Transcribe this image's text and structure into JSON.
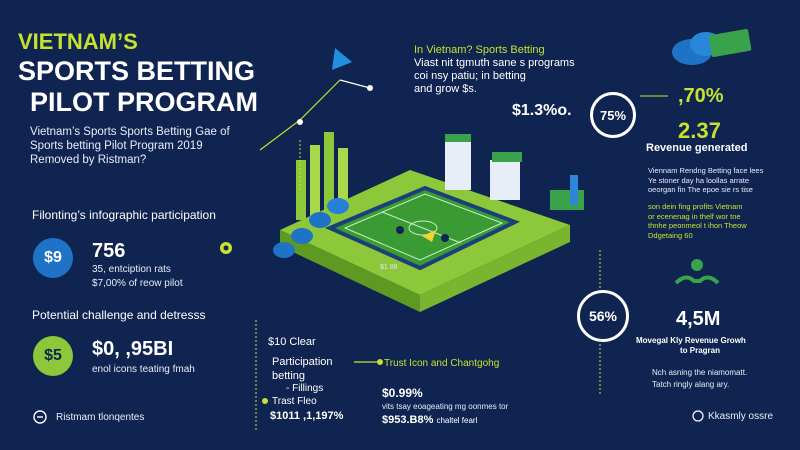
{
  "title": {
    "line1": "VIETNAM’S",
    "line2": "SPORTS BETTING",
    "line3": "PILOT PROGRAM"
  },
  "subtitle": {
    "line1": "Vietnam’s Sports Sports Betting Gae of",
    "line2": "Sports betting Pilot Program 2019",
    "line3": "Removed by Ristman?"
  },
  "participation": {
    "heading": "Filonting’s infographic participation",
    "badge": "$9",
    "value": "756",
    "line1": "35, entciption rats",
    "line2": "$7,00% of reow pilot"
  },
  "challenge": {
    "heading": "Potential challenge and detresss",
    "badge": "$5",
    "value": "$0, ,95BI",
    "line1": "enol icons teating fmah"
  },
  "footer_left": "Ristmam tlonqentes",
  "footer_right": "Kkasmly ossre",
  "top_note": {
    "line1": "In Vietnam? Sports Betting",
    "line2": "Viast nit tgmuth sane s programs",
    "line3": "coi nsy patiu; in betting",
    "line4": "and grow $s."
  },
  "center_stats": {
    "pct_a": "$1.3%o.",
    "ring_75": "75%",
    "field_label": "$1 88"
  },
  "right_panel": {
    "pct": ",70%",
    "value": "2.37",
    "value_label": "Revenue generated",
    "para1": [
      "Viennam Rendng Betting face lees",
      "Ye stoner day ha loollas arrate",
      "oeorgan fin The epoe sie rs tise"
    ],
    "para2": [
      "son dein fing profits Vietnam",
      "or ecenenag in thelf wor tne",
      "thnhe peonmeol t ihon Theow",
      "Ddgetaing 60"
    ]
  },
  "ring_56": "56%",
  "growth": {
    "value": "4,5M",
    "label1": "Movegal Kly Revenue Growh",
    "label2": "to Pragran",
    "line1": "Nch asning the niamomatt.",
    "line2": "Tatch ringly alang ary."
  },
  "bottom_center": {
    "clear": "$10 Clear",
    "part1": "Participation",
    "part2": "betting",
    "item1": "- Fillings",
    "item2": "Trast Fleo",
    "value": "$1011 ,1,197%"
  },
  "trust": {
    "label": "Trust Icon and Chantgohg",
    "pct": "$0.99%",
    "line1": "vits tsay eoageating mg oonmes tor",
    "value": "$953.B8%",
    "value_tail": "chaltel fearl"
  },
  "colors": {
    "background": "#0f2450",
    "accent": "#c6e22f",
    "badge_blue": "#1f73c6",
    "badge_green": "#8cc83a",
    "field_green": "#3a9a34"
  }
}
